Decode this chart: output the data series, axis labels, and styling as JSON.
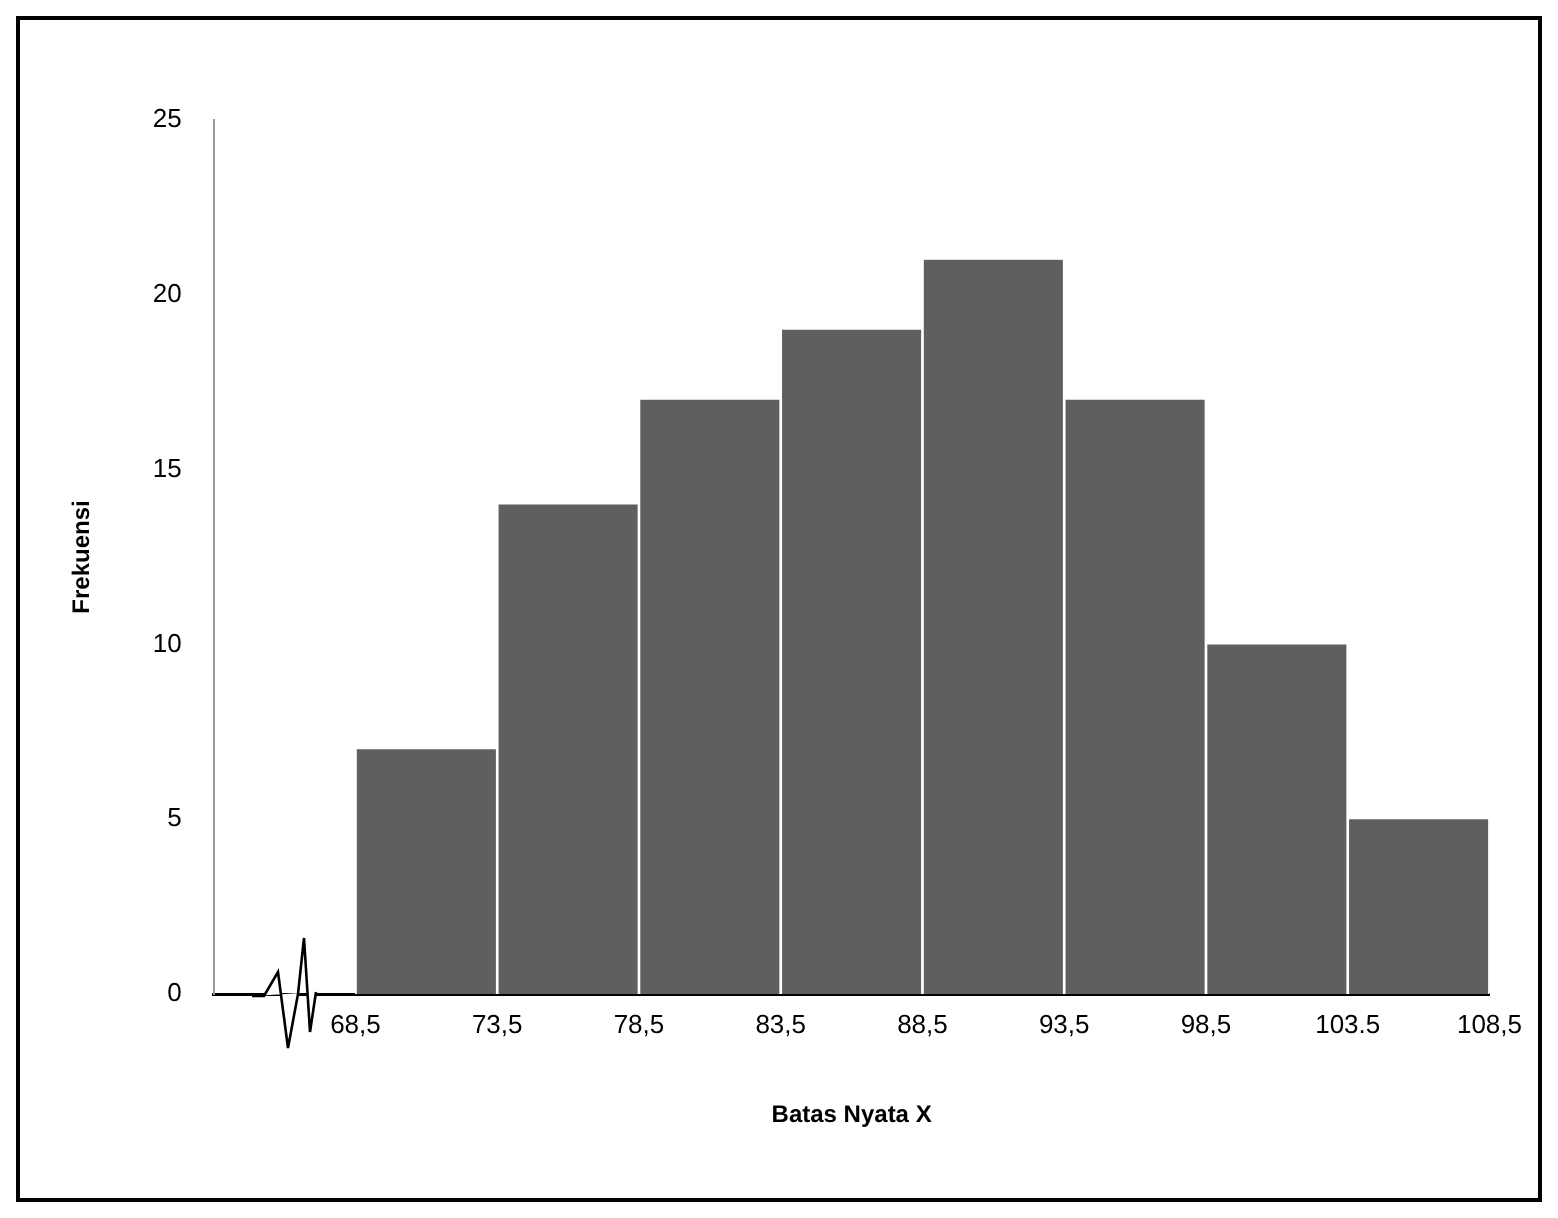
{
  "chart_data": {
    "type": "histogram",
    "xlabel": "Batas Nyata X",
    "ylabel": "Frekuensi",
    "bins": [
      68.5,
      73.5,
      78.5,
      83.5,
      88.5,
      93.5,
      98.5,
      103.5,
      108.5
    ],
    "values": [
      7,
      14,
      17,
      19,
      21,
      17,
      10,
      5
    ],
    "color": "#5f5f5f",
    "xlim": [
      63.5,
      108.5
    ],
    "xticks": [
      {
        "value": 68.5,
        "label": "68,5"
      },
      {
        "value": 73.5,
        "label": "73,5"
      },
      {
        "value": 78.5,
        "label": "78,5"
      },
      {
        "value": 83.5,
        "label": "83,5"
      },
      {
        "value": 88.5,
        "label": "88,5"
      },
      {
        "value": 93.5,
        "label": "93,5"
      },
      {
        "value": 98.5,
        "label": "98,5"
      },
      {
        "value": 103.5,
        "label": "103.5"
      },
      {
        "value": 108.5,
        "label": "108,5"
      }
    ],
    "ylim": [
      0,
      25
    ],
    "yticks": [
      0,
      5,
      10,
      15,
      20,
      25
    ],
    "grid": false,
    "legend": false
  }
}
